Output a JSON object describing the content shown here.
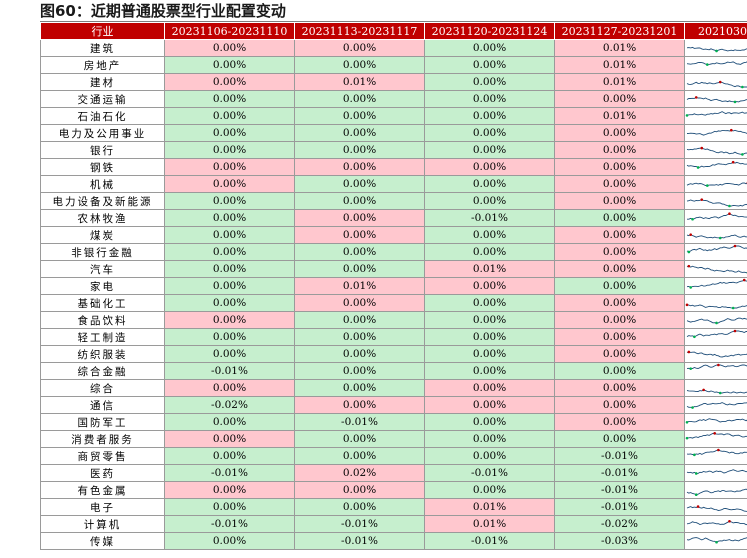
{
  "title": "图60：近期普通股票型行业配置变动",
  "table": {
    "headers": [
      "行业",
      "20231106-20231110",
      "20231113-20231117",
      "20231120-20231124",
      "20231127-20231201",
      "2021030"
    ],
    "rows": [
      {
        "industry": "建筑",
        "values": [
          "0.00%",
          "0.00%",
          "0.00%",
          "0.01%"
        ],
        "colors": [
          "pos",
          "pos",
          "neg",
          "pos"
        ]
      },
      {
        "industry": "房地产",
        "values": [
          "0.00%",
          "0.00%",
          "0.00%",
          "0.01%"
        ],
        "colors": [
          "neg",
          "neg",
          "neg",
          "pos"
        ]
      },
      {
        "industry": "建材",
        "values": [
          "0.00%",
          "0.01%",
          "0.00%",
          "0.01%"
        ],
        "colors": [
          "pos",
          "pos",
          "neg",
          "pos"
        ]
      },
      {
        "industry": "交通运输",
        "values": [
          "0.00%",
          "0.00%",
          "0.00%",
          "0.00%"
        ],
        "colors": [
          "neg",
          "neg",
          "neg",
          "pos"
        ]
      },
      {
        "industry": "石油石化",
        "values": [
          "0.00%",
          "0.00%",
          "0.00%",
          "0.01%"
        ],
        "colors": [
          "neg",
          "neg",
          "neg",
          "pos"
        ]
      },
      {
        "industry": "电力及公用事业",
        "values": [
          "0.00%",
          "0.00%",
          "0.00%",
          "0.00%"
        ],
        "colors": [
          "neg",
          "neg",
          "neg",
          "pos"
        ]
      },
      {
        "industry": "银行",
        "values": [
          "0.00%",
          "0.00%",
          "0.00%",
          "0.00%"
        ],
        "colors": [
          "neg",
          "neg",
          "neg",
          "pos"
        ]
      },
      {
        "industry": "钢铁",
        "values": [
          "0.00%",
          "0.00%",
          "0.00%",
          "0.00%"
        ],
        "colors": [
          "pos",
          "pos",
          "pos",
          "pos"
        ]
      },
      {
        "industry": "机械",
        "values": [
          "0.00%",
          "0.00%",
          "0.00%",
          "0.00%"
        ],
        "colors": [
          "pos",
          "neg",
          "neg",
          "pos"
        ]
      },
      {
        "industry": "电力设备及新能源",
        "values": [
          "0.00%",
          "0.00%",
          "0.00%",
          "0.00%"
        ],
        "colors": [
          "neg",
          "neg",
          "neg",
          "pos"
        ]
      },
      {
        "industry": "农林牧渔",
        "values": [
          "0.00%",
          "0.00%",
          "-0.01%",
          "0.00%"
        ],
        "colors": [
          "neg",
          "pos",
          "neg",
          "neg"
        ]
      },
      {
        "industry": "煤炭",
        "values": [
          "0.00%",
          "0.00%",
          "0.00%",
          "0.00%"
        ],
        "colors": [
          "neg",
          "pos",
          "neg",
          "pos"
        ]
      },
      {
        "industry": "非银行金融",
        "values": [
          "0.00%",
          "0.00%",
          "0.00%",
          "0.00%"
        ],
        "colors": [
          "neg",
          "neg",
          "neg",
          "pos"
        ]
      },
      {
        "industry": "汽车",
        "values": [
          "0.00%",
          "0.00%",
          "0.01%",
          "0.00%"
        ],
        "colors": [
          "neg",
          "neg",
          "pos",
          "pos"
        ]
      },
      {
        "industry": "家电",
        "values": [
          "0.00%",
          "0.01%",
          "0.00%",
          "0.00%"
        ],
        "colors": [
          "neg",
          "pos",
          "pos",
          "neg"
        ]
      },
      {
        "industry": "基础化工",
        "values": [
          "0.00%",
          "0.00%",
          "0.00%",
          "0.00%"
        ],
        "colors": [
          "neg",
          "pos",
          "neg",
          "pos"
        ]
      },
      {
        "industry": "食品饮料",
        "values": [
          "0.00%",
          "0.00%",
          "0.00%",
          "0.00%"
        ],
        "colors": [
          "pos",
          "neg",
          "neg",
          "pos"
        ]
      },
      {
        "industry": "轻工制造",
        "values": [
          "0.00%",
          "0.00%",
          "0.00%",
          "0.00%"
        ],
        "colors": [
          "neg",
          "neg",
          "neg",
          "pos"
        ]
      },
      {
        "industry": "纺织服装",
        "values": [
          "0.00%",
          "0.00%",
          "0.00%",
          "0.00%"
        ],
        "colors": [
          "neg",
          "neg",
          "neg",
          "pos"
        ]
      },
      {
        "industry": "综合金融",
        "values": [
          "-0.01%",
          "0.00%",
          "0.00%",
          "0.00%"
        ],
        "colors": [
          "neg",
          "neg",
          "neg",
          "neg"
        ]
      },
      {
        "industry": "综合",
        "values": [
          "0.00%",
          "0.00%",
          "0.00%",
          "0.00%"
        ],
        "colors": [
          "pos",
          "neg",
          "pos",
          "pos"
        ]
      },
      {
        "industry": "通信",
        "values": [
          "-0.02%",
          "0.00%",
          "0.00%",
          "0.00%"
        ],
        "colors": [
          "neg",
          "pos",
          "pos",
          "pos"
        ]
      },
      {
        "industry": "国防军工",
        "values": [
          "0.00%",
          "-0.01%",
          "0.00%",
          "0.00%"
        ],
        "colors": [
          "neg",
          "neg",
          "neg",
          "pos"
        ]
      },
      {
        "industry": "消费者服务",
        "values": [
          "0.00%",
          "0.00%",
          "0.00%",
          "0.00%"
        ],
        "colors": [
          "pos",
          "neg",
          "neg",
          "neg"
        ]
      },
      {
        "industry": "商贸零售",
        "values": [
          "0.00%",
          "0.00%",
          "0.00%",
          "-0.01%"
        ],
        "colors": [
          "neg",
          "neg",
          "neg",
          "neg"
        ]
      },
      {
        "industry": "医药",
        "values": [
          "-0.01%",
          "0.02%",
          "-0.01%",
          "-0.01%"
        ],
        "colors": [
          "neg",
          "pos",
          "neg",
          "neg"
        ]
      },
      {
        "industry": "有色金属",
        "values": [
          "0.00%",
          "0.00%",
          "0.00%",
          "-0.01%"
        ],
        "colors": [
          "pos",
          "pos",
          "neg",
          "neg"
        ]
      },
      {
        "industry": "电子",
        "values": [
          "0.00%",
          "0.00%",
          "0.01%",
          "-0.01%"
        ],
        "colors": [
          "neg",
          "neg",
          "pos",
          "neg"
        ]
      },
      {
        "industry": "计算机",
        "values": [
          "-0.01%",
          "-0.01%",
          "0.01%",
          "-0.02%"
        ],
        "colors": [
          "neg",
          "neg",
          "pos",
          "neg"
        ]
      },
      {
        "industry": "传媒",
        "values": [
          "0.00%",
          "-0.01%",
          "-0.01%",
          "-0.03%"
        ],
        "colors": [
          "neg",
          "neg",
          "neg",
          "neg"
        ]
      }
    ]
  },
  "sparkline": {
    "line_color": "#1f4e79",
    "marker_high": "#c00000",
    "marker_low": "#00b050"
  }
}
